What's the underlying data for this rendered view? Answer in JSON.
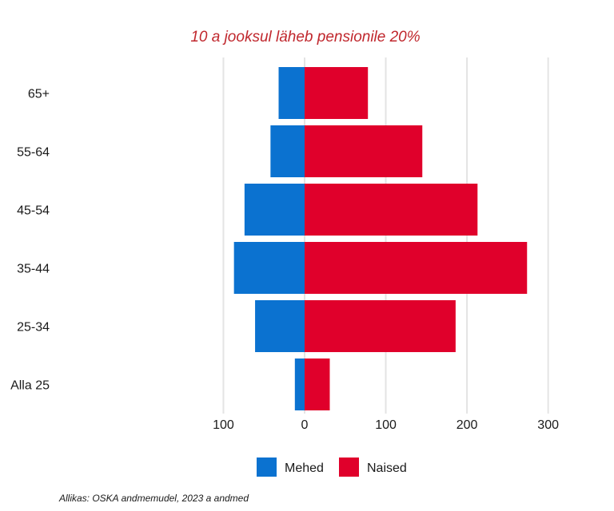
{
  "chart_data": {
    "type": "bar",
    "orientation": "horizontal",
    "layout": "population-pyramid",
    "title": "10 a jooksul läheb pensionile 20%",
    "source": "Allikas: OSKA andmemudel, 2023 a andmed",
    "categories": [
      "65+",
      "55-64",
      "45-54",
      "35-44",
      "25-34",
      "Alla 25"
    ],
    "series": [
      {
        "name": "Mehed",
        "color": "#0b72d0",
        "direction": "left",
        "values": [
          32,
          42,
          74,
          87,
          61,
          12
        ]
      },
      {
        "name": "Naised",
        "color": "#e0002b",
        "direction": "right",
        "values": [
          78,
          145,
          213,
          274,
          186,
          31
        ]
      }
    ],
    "x_ticks": [
      {
        "value": -100,
        "label": "100"
      },
      {
        "value": 0,
        "label": "0"
      },
      {
        "value": 100,
        "label": "100"
      },
      {
        "value": 200,
        "label": "200"
      },
      {
        "value": 300,
        "label": "300"
      }
    ],
    "xlim": [
      -100,
      300
    ],
    "grid": "vertical",
    "legend_position": "bottom"
  }
}
